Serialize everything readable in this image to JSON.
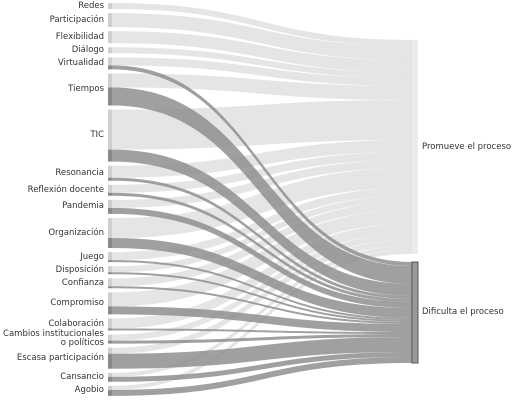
{
  "chart_data": {
    "type": "sankey",
    "categories": [
      "Redes",
      "Participación",
      "Flexibilidad",
      "Diálogo",
      "Virtualidad",
      "Tiempos",
      "TIC",
      "Resonancia",
      "Reflexión docente",
      "Pandemia",
      "Organización",
      "Juego",
      "Disposición",
      "Confianza",
      "Compromiso",
      "Colaboración",
      "Cambios institucionales o políticos",
      "Escasa participación",
      "Cansancio",
      "Agobio"
    ],
    "series": [
      {
        "name": "Promueve el proceso",
        "color": "#dcdcdc",
        "values": [
          6,
          14,
          12,
          6,
          8,
          14,
          40,
          12,
          8,
          8,
          20,
          8,
          6,
          8,
          14,
          10,
          6,
          6,
          4,
          4
        ]
      },
      {
        "name": "Dificulta el proceso",
        "color": "#8f8f8f",
        "values": [
          0,
          0,
          0,
          0,
          4,
          18,
          12,
          3,
          3,
          6,
          10,
          2,
          2,
          2,
          8,
          2,
          3,
          15,
          5,
          6
        ]
      }
    ]
  }
}
